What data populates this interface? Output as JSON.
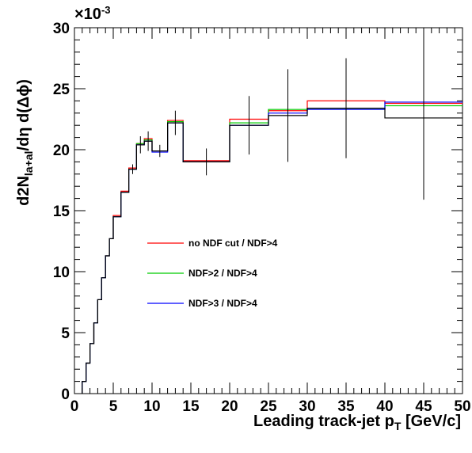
{
  "chart_data": {
    "type": "line",
    "title": "",
    "xlabel": {
      "main": "Leading track-jet p",
      "sub": "T",
      "tail": "[GeV/c]"
    },
    "ylabel": {
      "main": "d2N",
      "sub": "la+al",
      "tail": "/dη d(Δϕ)"
    },
    "exponent": {
      "base": "×10",
      "sup": "-3"
    },
    "xlim": [
      0,
      50
    ],
    "ylim": [
      0,
      0.03
    ],
    "x_ticks": [
      0,
      5,
      10,
      15,
      20,
      25,
      30,
      35,
      40,
      45,
      50
    ],
    "x_tick_labels": [
      "0",
      "5",
      "10",
      "15",
      "20",
      "25",
      "30",
      "35",
      "40",
      "45",
      "50"
    ],
    "y_ticks": [
      0,
      0.005,
      0.01,
      0.015,
      0.02,
      0.025,
      0.03
    ],
    "y_tick_labels": [
      "0",
      "5",
      "10",
      "15",
      "20",
      "25",
      "30"
    ],
    "bin_edges": [
      1,
      1.5,
      2,
      2.5,
      3,
      3.5,
      4,
      4.5,
      5,
      6,
      7,
      8,
      9,
      10,
      12,
      14,
      20,
      25,
      30,
      40,
      50
    ],
    "legend_position": "center",
    "series": [
      {
        "name": "no NDF cut / NDF>4",
        "color": "#ff0000",
        "values": [
          0.001,
          0.0025,
          0.0041,
          0.0058,
          0.0077,
          0.0095,
          0.0113,
          0.0127,
          0.0146,
          0.0166,
          0.0185,
          0.0205,
          0.0209,
          0.0199,
          0.0224,
          0.0191,
          0.0225,
          0.0232,
          0.024,
          0.0238
        ]
      },
      {
        "name": "NDF>2 / NDF>4",
        "color": "#00cc00",
        "values": [
          0.001,
          0.0025,
          0.0041,
          0.0058,
          0.0077,
          0.0095,
          0.0113,
          0.0127,
          0.0145,
          0.0165,
          0.0184,
          0.0205,
          0.0208,
          0.0199,
          0.0223,
          0.019,
          0.0222,
          0.0233,
          0.0234,
          0.0236
        ]
      },
      {
        "name": "NDF>3 / NDF>4",
        "color": "#0000ff",
        "values": [
          0.001,
          0.0025,
          0.0041,
          0.0058,
          0.0077,
          0.0095,
          0.0113,
          0.0127,
          0.0145,
          0.0165,
          0.0184,
          0.0204,
          0.0207,
          0.0198,
          0.0222,
          0.019,
          0.022,
          0.023,
          0.0233,
          0.0239
        ]
      },
      {
        "name": "",
        "color": "#000000",
        "values": [
          0.001,
          0.0025,
          0.0041,
          0.0058,
          0.0077,
          0.0095,
          0.0113,
          0.0127,
          0.0145,
          0.0165,
          0.0184,
          0.0204,
          0.0207,
          0.0199,
          0.0222,
          0.019,
          0.022,
          0.0228,
          0.0234,
          0.0226
        ],
        "errors": [
          0,
          0,
          0,
          0,
          0,
          0,
          0,
          0,
          0,
          0,
          0.0004,
          0.0007,
          0.0008,
          0.0005,
          0.001,
          0.0011,
          0.0024,
          0.0038,
          0.0041,
          0.0067
        ]
      }
    ]
  }
}
